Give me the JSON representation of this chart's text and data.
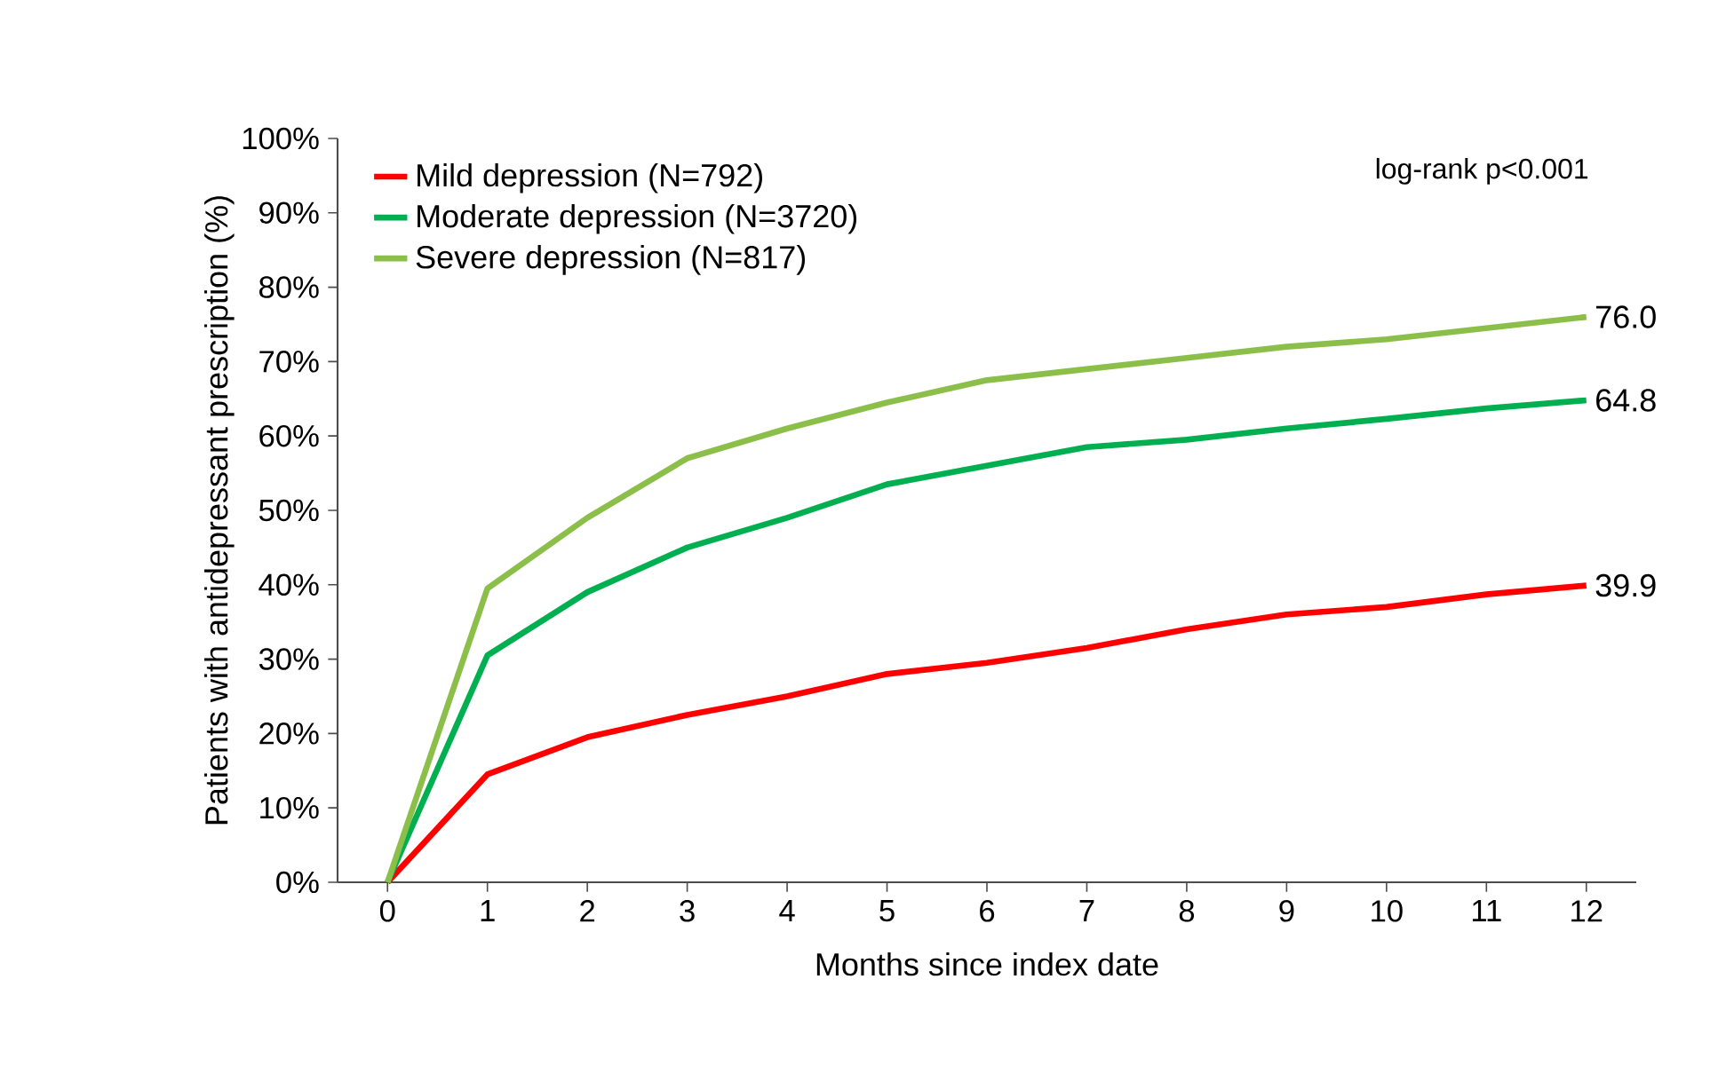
{
  "chart_data": {
    "type": "line",
    "xlabel": "Months since index date",
    "ylabel": "Patients with antidepressant prescription (%)",
    "x": [
      0,
      1,
      2,
      3,
      4,
      5,
      6,
      7,
      8,
      9,
      10,
      11,
      12
    ],
    "series": [
      {
        "name": "Mild depression (N=792)",
        "color": "#ff0000",
        "values": [
          0,
          14.5,
          19.5,
          22.5,
          25,
          28,
          29.5,
          31.5,
          34,
          36,
          37,
          38.7,
          39.9
        ],
        "value_labels": [
          null,
          null,
          null,
          null,
          null,
          null,
          null,
          null,
          null,
          null,
          null,
          null,
          "39.9"
        ]
      },
      {
        "name": "Moderate depression (N=3720)",
        "color": "#00b050",
        "values": [
          0,
          30.5,
          39,
          45,
          49,
          53.5,
          56,
          58.5,
          59.5,
          61,
          62.3,
          63.7,
          64.8
        ],
        "value_labels": [
          null,
          null,
          null,
          null,
          null,
          null,
          null,
          null,
          null,
          null,
          null,
          null,
          "64.8"
        ]
      },
      {
        "name": "Severe depression (N=817)",
        "color": "#8cbf4a",
        "values": [
          0,
          39.5,
          49,
          57,
          61,
          64.5,
          67.5,
          69,
          70.5,
          72,
          73,
          74.5,
          76.0
        ],
        "value_labels": [
          null,
          null,
          null,
          null,
          null,
          null,
          null,
          null,
          null,
          null,
          null,
          null,
          "76.0"
        ]
      }
    ],
    "annotations": [
      "log-rank p<0.001"
    ],
    "xlim": [
      -0.5,
      12.5
    ],
    "ylim": [
      0,
      100
    ],
    "xticks": [
      0,
      1,
      2,
      3,
      4,
      5,
      6,
      7,
      8,
      9,
      10,
      11,
      12
    ],
    "yticks": [
      {
        "value": 0,
        "label": "0%"
      },
      {
        "value": 10,
        "label": "10%"
      },
      {
        "value": 20,
        "label": "20%"
      },
      {
        "value": 30,
        "label": "30%"
      },
      {
        "value": 40,
        "label": "40%"
      },
      {
        "value": 50,
        "label": "50%"
      },
      {
        "value": 60,
        "label": "60%"
      },
      {
        "value": 70,
        "label": "70%"
      },
      {
        "value": 80,
        "label": "80%"
      },
      {
        "value": 90,
        "label": "90%"
      },
      {
        "value": 100,
        "label": "100%"
      }
    ],
    "grid": false,
    "legend": "top left",
    "marker": "none",
    "line_style": "solid"
  }
}
